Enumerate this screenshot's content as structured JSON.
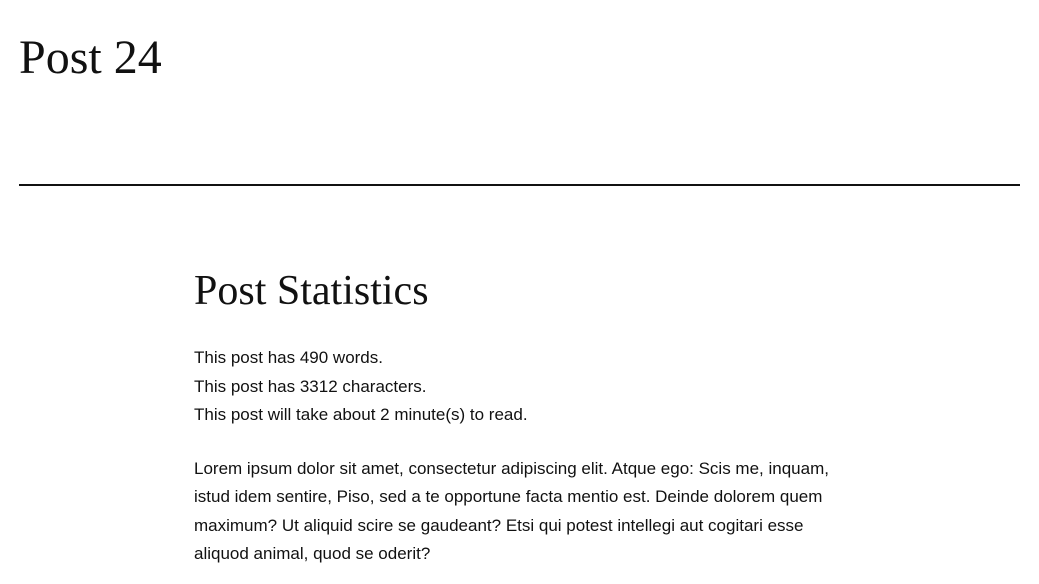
{
  "post": {
    "title": "Post 24"
  },
  "statistics": {
    "heading": "Post Statistics",
    "words_line": "This post has 490 words.",
    "characters_line": "This post has 3312 characters.",
    "read_time_line": "This post will take about 2 minute(s) to read."
  },
  "body": {
    "paragraph_1": "Lorem ipsum dolor sit amet, consectetur adipiscing elit. Atque ego: Scis me, inquam, istud idem sentire, Piso, sed a te opportune facta mentio est. Deinde dolorem quem maximum? Ut aliquid scire se gaudeant? Etsi qui potest intellegi aut cogitari esse aliquod animal, quod se oderit?"
  }
}
